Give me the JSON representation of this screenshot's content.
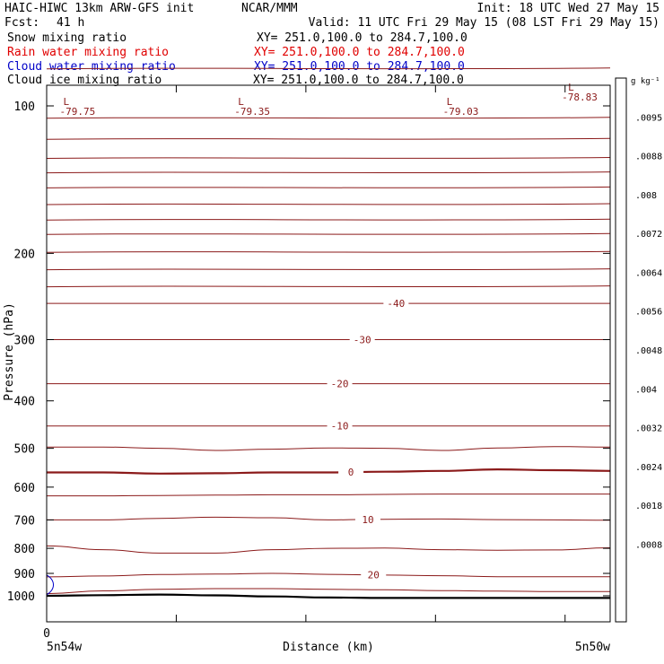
{
  "header": {
    "title": "HAIC-HIWC 13km ARW-GFS init",
    "org": "NCAR/MMM",
    "init": "Init: 18 UTC Wed 27 May 15",
    "fcst_label": "Fcst:",
    "fcst_value": "41 h",
    "valid": "Valid: 11 UTC Fri 29 May 15 (08 LST Fri 29 May 15)"
  },
  "fields": [
    {
      "name": "Snow mixing ratio",
      "xy": "XY= 251.0,100.0 to 284.7,100.0",
      "color": "#000000"
    },
    {
      "name": "Rain water mixing ratio",
      "xy": "XY= 251.0,100.0 to 284.7,100.0",
      "color": "#e00000"
    },
    {
      "name": "Cloud water mixing ratio",
      "xy": "XY= 251.0,100.0 to 284.7,100.0",
      "color": "#0000c8"
    },
    {
      "name": "Cloud ice mixing ratio",
      "xy": "XY= 251.0,100.0 to 284.7,100.0",
      "color": "#000000"
    }
  ],
  "chart_data": {
    "type": "line",
    "ylabel": "Pressure (hPa)",
    "xlabel": "Distance (km)",
    "y_scale": "log",
    "y_ticks": [
      100,
      200,
      300,
      400,
      500,
      600,
      700,
      800,
      900,
      1000
    ],
    "ylim": [
      1050,
      75
    ],
    "xlim": [
      0,
      100
    ],
    "x_tick_positions": [
      0,
      23,
      46,
      69,
      92
    ],
    "x_start_label": "0",
    "x_left_location": "5n54w",
    "x_right_location": "5n50w",
    "contour_color": "#8b1a1a",
    "temperature_contours": [
      {
        "label": "-40",
        "level": -40,
        "pressure": [
          253,
          253,
          253,
          253,
          253,
          253,
          253,
          253,
          253,
          253,
          253
        ]
      },
      {
        "label": "-30",
        "level": -30,
        "pressure": [
          300,
          300,
          300,
          300,
          300,
          300,
          300,
          300,
          300,
          300,
          300
        ]
      },
      {
        "label": "-20",
        "level": -20,
        "pressure": [
          369,
          369,
          369,
          369,
          369,
          369,
          369,
          369,
          369,
          369,
          369
        ]
      },
      {
        "label": "-10",
        "level": -10,
        "pressure": [
          450,
          450,
          450,
          450,
          450,
          450,
          450,
          450,
          450,
          450,
          450
        ]
      },
      {
        "label": "",
        "level": -5,
        "pressure": [
          497,
          497,
          500,
          505,
          502,
          499,
          500,
          505,
          499,
          496,
          497
        ]
      },
      {
        "label": "0",
        "level": 0,
        "pressure": [
          560,
          560,
          563,
          562,
          560,
          560,
          558,
          556,
          552,
          554,
          556
        ]
      },
      {
        "label": "",
        "level": 5,
        "pressure": [
          625,
          625,
          624,
          623,
          622,
          622,
          621,
          620,
          620,
          620,
          620
        ]
      },
      {
        "label": "10",
        "level": 10,
        "pressure": [
          700,
          700,
          695,
          691,
          693,
          700,
          698,
          697,
          699,
          700,
          701
        ]
      },
      {
        "label": "",
        "level": 15,
        "pressure": [
          791,
          805,
          818,
          818,
          805,
          800,
          799,
          805,
          807,
          806,
          798
        ]
      },
      {
        "label": "20",
        "level": 20,
        "pressure": [
          915,
          911,
          905,
          903,
          900,
          904,
          907,
          910,
          914,
          914,
          914
        ]
      },
      {
        "label": "",
        "level": 25,
        "pressure": [
          990,
          977,
          970,
          967,
          967,
          970,
          972,
          976,
          978,
          980,
          980
        ]
      }
    ],
    "contour_x": [
      0,
      10,
      20,
      30,
      40,
      50,
      60,
      70,
      80,
      90,
      100
    ],
    "contour_label_x": {
      "-40": 62,
      "-30": 56,
      "-20": 52,
      "-10": 52,
      "0": 54,
      "10": 57,
      "20": 58
    },
    "terrain_pressure": [
      1000,
      997,
      994,
      998,
      1003,
      1008,
      1010,
      1010,
      1010,
      1010,
      1010
    ],
    "low_markers": [
      {
        "mark": "L",
        "value": "-79.75",
        "x": 2
      },
      {
        "mark": "L",
        "value": "-79.35",
        "x": 33
      },
      {
        "mark": "L",
        "value": "-79.03",
        "x": 70
      },
      {
        "mark": "L",
        "value": "-78.83",
        "x": 97
      }
    ],
    "upper_lines_pressure": [
      84,
      106,
      117,
      128,
      137,
      147,
      159,
      171,
      183,
      199,
      216,
      234
    ],
    "cloud_water_feature": {
      "x": 1,
      "pressure": 954
    },
    "colorbar": {
      "unit": "g kg⁻¹",
      "labels": [
        ".0095",
        ".0088",
        ".008",
        ".0072",
        ".0064",
        ".0056",
        ".0048",
        ".004",
        ".0032",
        ".0024",
        ".0018",
        ".0008"
      ],
      "shades": [
        "#3c3c3c",
        "#4a4a4a",
        "#585858",
        "#666666",
        "#747474",
        "#828282",
        "#909090",
        "#9e9e9e",
        "#acacac",
        "#bababa",
        "#c8c8c8",
        "#d6d6d6",
        "#e2e2e2",
        "#ffffff"
      ]
    }
  }
}
